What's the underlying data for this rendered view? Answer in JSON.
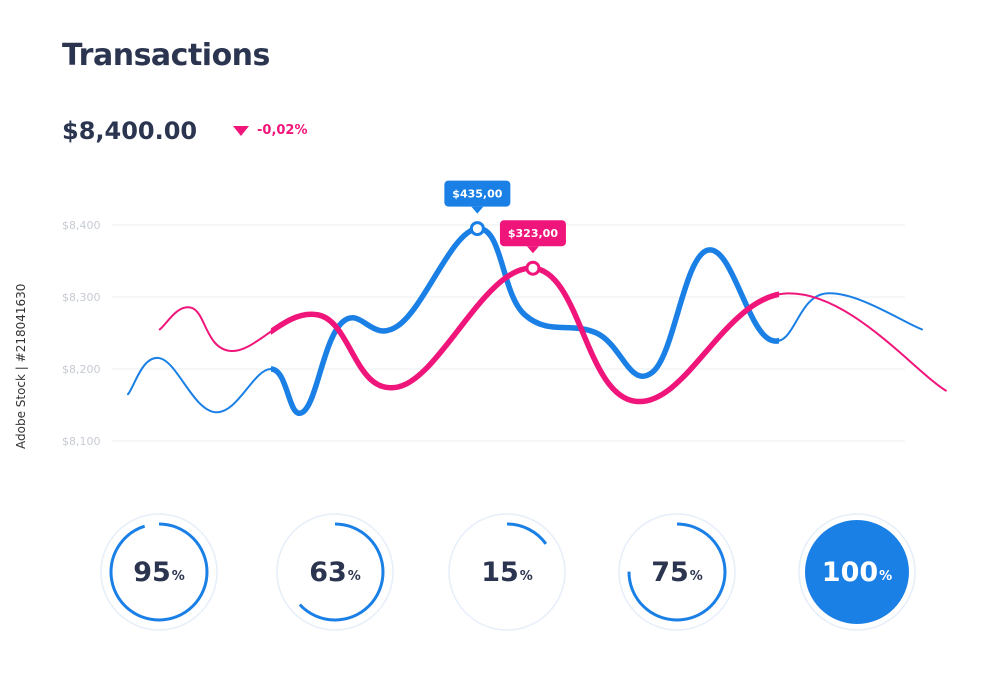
{
  "header": {
    "title": "Transactions",
    "amount": "$8,400.00",
    "change": "-0,02%"
  },
  "colors": {
    "blue": "#1a80e6",
    "pink": "#f0157a",
    "text": "#2c3550",
    "grid": "#e9ecf2",
    "tick": "#c6cad3"
  },
  "chart_data": {
    "type": "line",
    "title": "",
    "xlabel": "",
    "ylabel": "",
    "ylim": [
      8100,
      8400
    ],
    "y_ticks": [
      "$8,400",
      "$8,300",
      "$8,200",
      "$8,100"
    ],
    "y_tick_values": [
      8400,
      8300,
      8200,
      8100
    ],
    "grid": true,
    "series": [
      {
        "color": "blue",
        "points": [
          [
            0,
            8165
          ],
          [
            4,
            8215
          ],
          [
            11,
            8140
          ],
          [
            18,
            8200
          ],
          [
            22,
            8140
          ],
          [
            27,
            8265
          ],
          [
            34,
            8260
          ],
          [
            44,
            8395
          ],
          [
            50,
            8275
          ],
          [
            59,
            8250
          ],
          [
            66,
            8195
          ],
          [
            73,
            8365
          ],
          [
            81,
            8240
          ],
          [
            88,
            8305
          ],
          [
            100,
            8255
          ]
        ],
        "tooltip": {
          "index": 7,
          "label": "$435,00"
        }
      },
      {
        "color": "pink",
        "points": [
          [
            4,
            8255
          ],
          [
            8,
            8285
          ],
          [
            13,
            8225
          ],
          [
            24,
            8275
          ],
          [
            34,
            8175
          ],
          [
            51,
            8340
          ],
          [
            64,
            8155
          ],
          [
            83,
            8305
          ],
          [
            103,
            8170
          ]
        ],
        "tooltip": {
          "index": 5,
          "label": "$323,00"
        }
      }
    ]
  },
  "gauges": [
    {
      "value": 95,
      "unit": "%"
    },
    {
      "value": 63,
      "unit": "%"
    },
    {
      "value": 15,
      "unit": "%"
    },
    {
      "value": 75,
      "unit": "%"
    },
    {
      "value": 100,
      "unit": "%"
    }
  ],
  "side_text": "Adobe Stock | #218041630"
}
